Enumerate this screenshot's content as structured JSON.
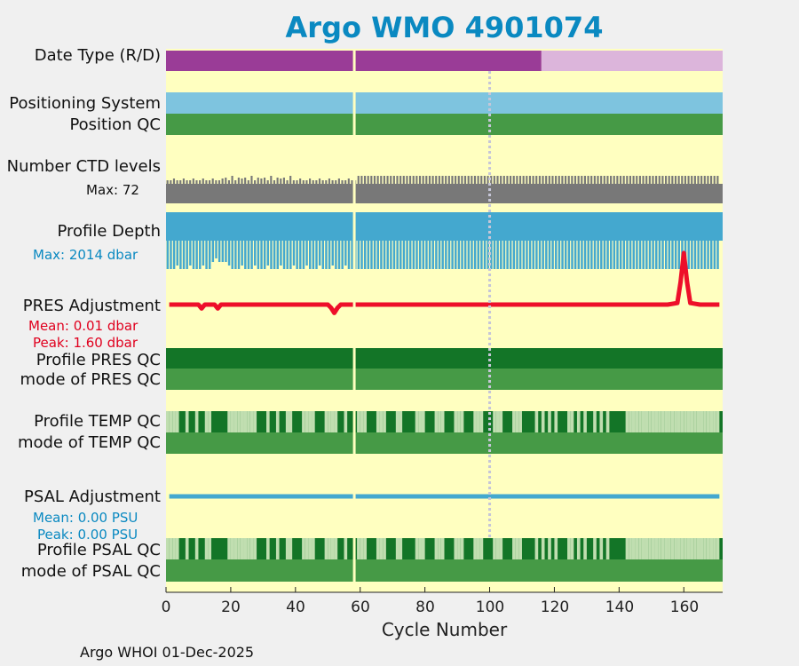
{
  "title": "Argo WMO 4901074",
  "footer": "Argo WHOI 01-Dec-2025",
  "chart_data": {
    "type": "timeline",
    "title": "Argo WMO 4901074",
    "xlabel": "Cycle Number",
    "xlim": [
      0,
      172
    ],
    "xticks": [
      0,
      20,
      40,
      60,
      80,
      100,
      120,
      140,
      160
    ],
    "gap_cycle": 59,
    "reference_cycle": 100,
    "colors": {
      "background": "#ffffc0",
      "date_type_realtime": "#9a3c97",
      "date_type_delayed": "#dcb5db",
      "positioning_system": "#7ec4df",
      "position_qc": "#469a46",
      "ctd_levels": "#787878",
      "profile_depth": "#44a8cf",
      "pres_adjustment": "#ee0f2a",
      "qc_good_all": "#137527",
      "qc_mode_good": "#469a46",
      "qc_mixed": "#c0deb0",
      "psal_adjustment": "#44a8cf",
      "title": "#0a89c1"
    },
    "rows": {
      "date_type": {
        "label": "Date Type (R/D)",
        "realtime_cycles": [
          1,
          116
        ],
        "delayed_cycles": [
          117,
          172
        ]
      },
      "positioning_system": {
        "label": "Positioning System"
      },
      "position_qc": {
        "label": "Position QC"
      },
      "ctd_levels": {
        "label": "Number CTD levels",
        "max_label": "Max: 72",
        "max": 72
      },
      "profile_depth": {
        "label": "Profile Depth",
        "max_label": "Max: 2014 dbar",
        "max": 2014
      },
      "pres_adjustment": {
        "label": "PRES Adjustment",
        "mean_label": "Mean: 0.01 dbar",
        "peak_label": "Peak: 1.60 dbar",
        "ylim": [
          -0.3,
          1.6
        ],
        "cycles": [
          1,
          10,
          11,
          12,
          15,
          16,
          17,
          20,
          30,
          40,
          50,
          51,
          52,
          53,
          54,
          58,
          60,
          80,
          100,
          120,
          140,
          155,
          158,
          159,
          160,
          161,
          162,
          165,
          171
        ],
        "values": [
          0,
          0,
          -0.12,
          0,
          0,
          -0.12,
          0,
          0,
          0,
          0,
          0,
          -0.1,
          -0.26,
          -0.1,
          0,
          0,
          0,
          0,
          0,
          0,
          0,
          0,
          0.05,
          0.7,
          1.6,
          0.7,
          0.05,
          0,
          0
        ]
      },
      "profile_pres_qc": {
        "label": "Profile PRES QC"
      },
      "mode_pres_qc": {
        "label": "mode of PRES QC"
      },
      "profile_temp_qc": {
        "label": "Profile TEMP QC",
        "mixed_cycles": [
          1,
          2,
          3,
          4,
          7,
          10,
          13,
          14,
          20,
          21,
          22,
          23,
          24,
          25,
          26,
          27,
          28,
          32,
          35,
          38,
          39,
          43,
          44,
          45,
          46,
          50,
          51,
          52,
          53,
          56,
          60,
          61,
          62,
          66,
          67,
          68,
          72,
          73,
          78,
          79,
          80,
          84,
          85,
          86,
          90,
          91,
          92,
          96,
          97,
          98,
          102,
          103,
          104,
          108,
          109,
          110,
          115,
          117,
          119,
          121,
          125,
          126,
          128,
          130,
          133,
          135,
          137,
          143,
          144,
          145,
          146,
          147,
          148,
          149,
          150,
          151,
          152,
          153,
          154,
          155,
          156,
          157,
          158,
          159,
          160,
          161,
          162,
          163,
          164,
          165,
          166,
          167,
          168,
          169,
          170,
          171
        ]
      },
      "mode_temp_qc": {
        "label": "mode of TEMP QC"
      },
      "psal_adjustment": {
        "label": "PSAL Adjustment",
        "mean_label": "Mean: 0.00 PSU",
        "peak_label": "Peak: 0.00 PSU"
      },
      "profile_psal_qc": {
        "label": "Profile PSAL QC",
        "mixed_cycles": [
          1,
          2,
          3,
          4,
          7,
          10,
          13,
          14,
          20,
          21,
          22,
          23,
          24,
          25,
          26,
          27,
          28,
          32,
          35,
          38,
          39,
          43,
          44,
          45,
          46,
          50,
          51,
          52,
          53,
          56,
          60,
          61,
          62,
          66,
          67,
          68,
          72,
          73,
          78,
          79,
          80,
          84,
          85,
          86,
          90,
          91,
          92,
          96,
          97,
          98,
          102,
          103,
          104,
          108,
          109,
          110,
          115,
          117,
          119,
          121,
          125,
          126,
          128,
          130,
          133,
          135,
          137,
          143,
          144,
          145,
          146,
          147,
          148,
          149,
          150,
          151,
          152,
          153,
          154,
          155,
          156,
          157,
          158,
          159,
          160,
          161,
          162,
          163,
          164,
          165,
          166,
          167,
          168,
          169,
          170,
          171
        ]
      },
      "mode_psal_qc": {
        "label": "mode of PSAL QC"
      }
    }
  }
}
